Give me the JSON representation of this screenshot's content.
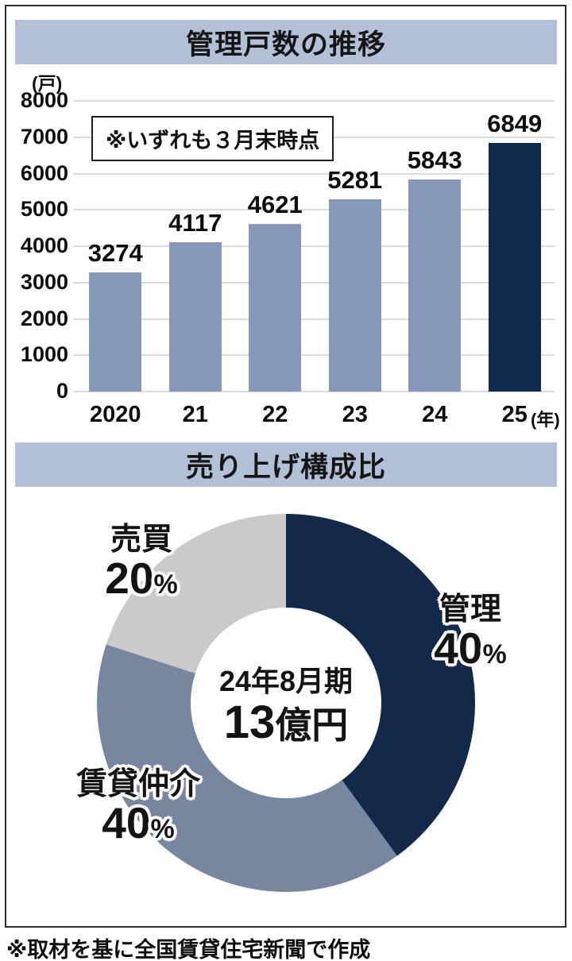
{
  "chart_data": [
    {
      "type": "bar",
      "title": "管理戸数の推移",
      "unit": "(戸)",
      "note": "※いずれも３月末時点",
      "categories": [
        "2020",
        "21",
        "22",
        "23",
        "24",
        "25"
      ],
      "values": [
        3274,
        4117,
        4621,
        5281,
        5843,
        6849
      ],
      "xlabel_suffix": "(年)",
      "ylim": [
        0,
        8000
      ],
      "ytick_step": 1000,
      "grid": true,
      "bar_color": "#8697ba",
      "highlight_index": 5,
      "highlight_color": "#102b4b",
      "header_bg": "#b2c0d8"
    },
    {
      "type": "donut",
      "title": "売り上げ構成比",
      "direction": "clockwise",
      "start_angle_deg": 0,
      "segments": [
        {
          "label": "管理",
          "value": 40,
          "color": "#13294a"
        },
        {
          "label": "賃貸仲介",
          "value": 40,
          "color": "#76879f"
        },
        {
          "label": "売買",
          "value": 20,
          "color": "#cacaca"
        }
      ],
      "percent_sign": "%",
      "center_label_line1": "24年8月期",
      "center_value": "13",
      "center_value_unit": "億円"
    }
  ],
  "footer": "※取材を基に全国賃貸住宅新聞で作成"
}
